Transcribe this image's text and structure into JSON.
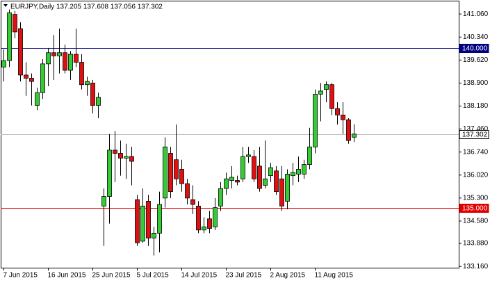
{
  "chart_data": {
    "type": "candlestick",
    "title": "EURJPY,Daily  137.205 137.608 137.056 137.302",
    "categories": [
      "7 Jun 2015",
      null,
      null,
      null,
      null,
      null,
      null,
      null,
      "16 Jun 2015",
      null,
      null,
      null,
      null,
      null,
      null,
      null,
      "25 Jun 2015",
      null,
      null,
      null,
      null,
      null,
      null,
      null,
      "5 Jul 2015",
      null,
      null,
      null,
      null,
      null,
      null,
      null,
      "14 Jul 2015",
      null,
      null,
      null,
      null,
      null,
      null,
      null,
      "23 Jul 2015",
      null,
      null,
      null,
      null,
      null,
      null,
      null,
      "2 Aug 2015",
      null,
      null,
      null,
      null,
      null,
      null,
      null,
      "11 Aug 2015",
      null,
      null,
      null,
      null,
      null,
      null,
      null
    ],
    "open": [
      139.4,
      139.6,
      141.05,
      140.6,
      139.15,
      139.05,
      138.2,
      138.6,
      139.5,
      139.85,
      139.75,
      139.85,
      139.3,
      139.8,
      139.55,
      138.85,
      138.9,
      138.2,
      135.05,
      135.35,
      136.8,
      136.7,
      136.55,
      136.6,
      135.25,
      133.95,
      135.2,
      134.05,
      134.2,
      135.3,
      136.7,
      136.5,
      136.2,
      135.75,
      135.25,
      135.05,
      134.3,
      134.65,
      134.4,
      135.05,
      135.6,
      135.85,
      135.85,
      135.9,
      136.6,
      136.6,
      136.3,
      135.7,
      136.0,
      136.15,
      135.9,
      135.2,
      136.0,
      136.05,
      136.05,
      136.35,
      136.9,
      138.55,
      138.7,
      138.85,
      138.1,
      137.9,
      137.75,
      137.205
    ],
    "high": [
      139.95,
      141.2,
      141.15,
      140.8,
      139.55,
      139.2,
      138.75,
      139.65,
      140.0,
      140.4,
      140.6,
      140.1,
      139.9,
      140.6,
      139.8,
      139.1,
      139.0,
      138.6,
      135.6,
      137.3,
      137.4,
      137.1,
      137.0,
      136.9,
      135.4,
      135.6,
      135.4,
      134.4,
      135.5,
      137.2,
      136.9,
      137.6,
      136.5,
      135.9,
      135.7,
      135.2,
      134.7,
      134.9,
      135.3,
      135.8,
      136.1,
      136.3,
      136.0,
      136.9,
      136.9,
      136.8,
      136.9,
      137.1,
      136.4,
      136.3,
      136.3,
      136.2,
      136.4,
      136.6,
      136.5,
      137.5,
      138.7,
      138.9,
      138.95,
      138.9,
      138.3,
      138.3,
      137.8,
      137.608
    ],
    "low": [
      138.95,
      139.4,
      140.3,
      138.95,
      138.5,
      138.2,
      138.05,
      138.4,
      138.8,
      139.0,
      139.2,
      139.2,
      139.0,
      139.4,
      138.7,
      138.5,
      137.95,
      137.8,
      133.8,
      134.5,
      135.8,
      136.0,
      135.9,
      135.7,
      133.8,
      133.9,
      133.8,
      133.5,
      133.6,
      135.0,
      135.3,
      135.7,
      135.5,
      135.1,
      134.8,
      134.2,
      134.2,
      134.2,
      134.3,
      134.9,
      135.4,
      135.6,
      135.7,
      135.8,
      136.4,
      135.8,
      135.5,
      135.6,
      135.8,
      135.4,
      134.9,
      134.95,
      135.7,
      135.8,
      135.9,
      136.2,
      136.7,
      137.7,
      138.3,
      137.9,
      137.6,
      137.3,
      137.0,
      137.056
    ],
    "close": [
      139.6,
      141.1,
      140.5,
      139.15,
      139.05,
      138.95,
      138.6,
      139.5,
      139.85,
      139.75,
      139.85,
      139.3,
      139.8,
      139.55,
      138.85,
      138.95,
      138.2,
      138.45,
      135.35,
      136.8,
      136.7,
      136.55,
      136.6,
      136.45,
      133.9,
      135.05,
      134.05,
      134.2,
      135.1,
      136.9,
      135.5,
      135.9,
      135.75,
      135.3,
      135.1,
      134.3,
      134.4,
      134.35,
      135.0,
      135.6,
      135.9,
      135.95,
      135.8,
      136.6,
      136.65,
      135.9,
      135.6,
      135.9,
      136.25,
      135.5,
      135.05,
      136.05,
      136.1,
      136.2,
      136.35,
      136.9,
      138.55,
      138.65,
      138.85,
      138.1,
      137.9,
      137.75,
      137.1,
      137.302
    ],
    "up_color": "#33cc33",
    "down_color": "#e01010",
    "ylim": [
      133.12,
      141.39
    ],
    "yticks": [
      {
        "value": 141.06,
        "label": "141.060"
      },
      {
        "value": 140.34,
        "label": "140.340"
      },
      {
        "value": 139.62,
        "label": "139.620"
      },
      {
        "value": 138.9,
        "label": "138.900"
      },
      {
        "value": 138.18,
        "label": "138.180"
      },
      {
        "value": 137.46,
        "label": "137.460"
      },
      {
        "value": 136.74,
        "label": "136.740"
      },
      {
        "value": 136.02,
        "label": "136.020"
      },
      {
        "value": 135.3,
        "label": "135.300"
      },
      {
        "value": 134.58,
        "label": "134.580"
      },
      {
        "value": 133.88,
        "label": "133.880"
      },
      {
        "value": 133.16,
        "label": "133.160"
      }
    ],
    "hlines": [
      {
        "value": 140,
        "label": "140.000",
        "color": "#000080"
      },
      {
        "value": 135,
        "label": "135.000",
        "color": "#e00000"
      },
      {
        "value": 137.302,
        "label": "137.302",
        "color": "#c0c0c0"
      }
    ],
    "grid": false
  }
}
